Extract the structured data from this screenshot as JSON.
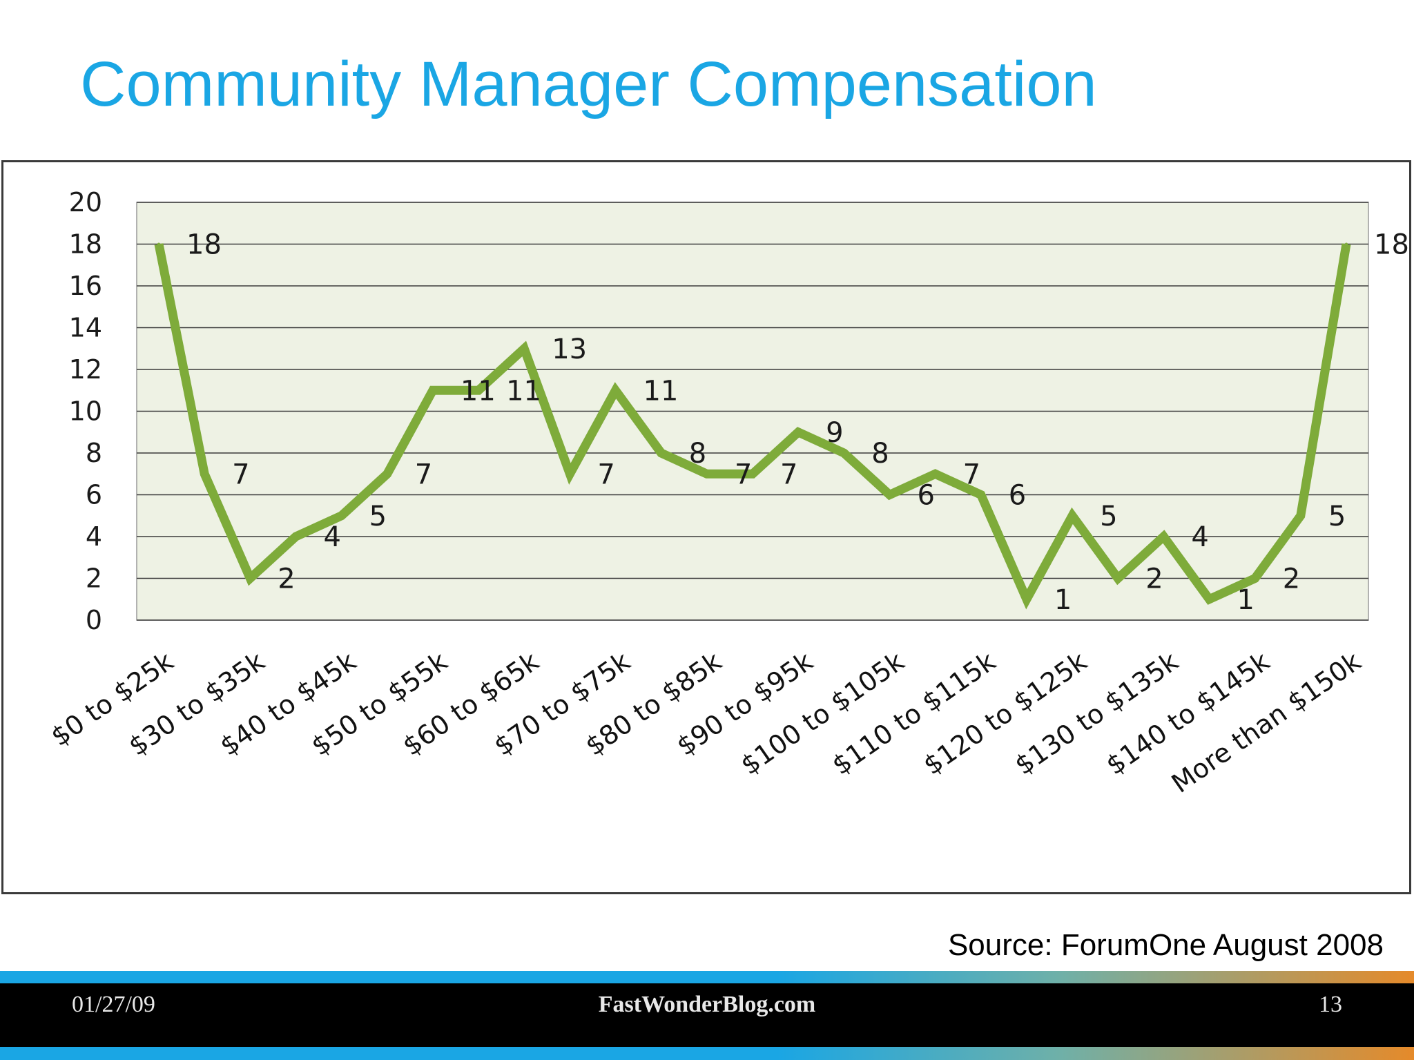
{
  "slide": {
    "title": "Community Manager Compensation",
    "source": "Source: ForumOne August 2008"
  },
  "footer": {
    "date": "01/27/09",
    "site": "FastWonderBlog.com",
    "page": "13"
  },
  "colors": {
    "title": "#1aa6e4",
    "line": "#7eab3a",
    "plot_background": "#eef2e4",
    "gridline": "#3a3a3a"
  },
  "chart_data": {
    "type": "line",
    "title": "",
    "xlabel": "",
    "ylabel": "",
    "ylim": [
      0,
      20
    ],
    "yticks": [
      0,
      2,
      4,
      6,
      8,
      10,
      12,
      14,
      16,
      18,
      20
    ],
    "grid": true,
    "legend": "none",
    "tick_labels": [
      "$0 to $25k",
      "$30 to $35k",
      "$40 to $45k",
      "$50 to $55k",
      "$60 to $65k",
      "$70 to $75k",
      "$80 to $85k",
      "$90 to $95k",
      "$100 to $105k",
      "$110 to $115k",
      "$120 to $125k",
      "$130 to $135k",
      "$140 to $145k",
      "More than $150k"
    ],
    "values": [
      18,
      7,
      2,
      4,
      5,
      7,
      11,
      11,
      13,
      7,
      11,
      8,
      7,
      7,
      9,
      8,
      6,
      7,
      6,
      1,
      5,
      2,
      4,
      1,
      2,
      5,
      18
    ]
  }
}
